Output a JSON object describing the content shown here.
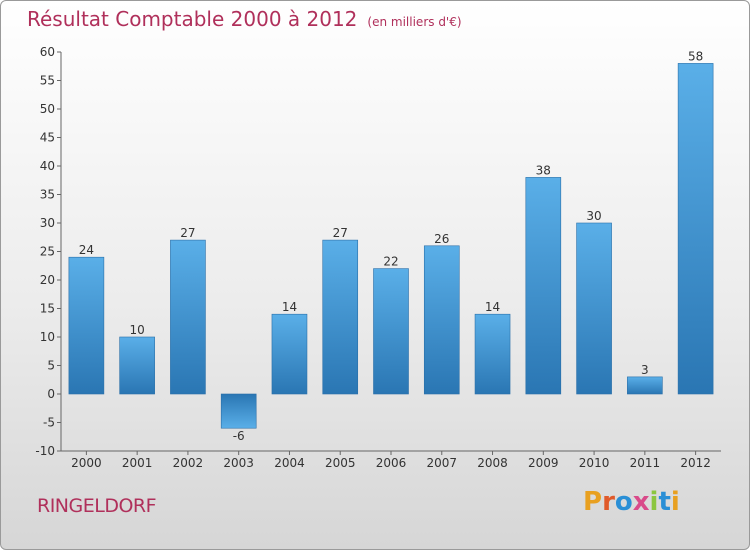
{
  "header": {
    "title": "Résultat Comptable 2000 à 2012",
    "subtitle": "(en milliers d'€)"
  },
  "footer": {
    "place": "RINGELDORF",
    "logo_letters": [
      "P",
      "r",
      "o",
      "x",
      "i",
      "t",
      "i"
    ]
  },
  "colors": {
    "title": "#b0305b",
    "bar_top": "#5aafe8",
    "bar_bottom": "#2a76b3",
    "logo": [
      "#e8a020",
      "#e05a2a",
      "#2a8fd6",
      "#d94a8a",
      "#8cc63f",
      "#2a8fd6",
      "#e8a020"
    ]
  },
  "chart_data": {
    "type": "bar",
    "title": "Résultat Comptable 2000 à 2012",
    "xlabel": "",
    "ylabel": "",
    "categories": [
      "2000",
      "2001",
      "2002",
      "2003",
      "2004",
      "2005",
      "2006",
      "2007",
      "2008",
      "2009",
      "2010",
      "2011",
      "2012"
    ],
    "values": [
      24,
      10,
      27,
      -6,
      14,
      27,
      22,
      26,
      14,
      38,
      30,
      3,
      58
    ],
    "ylim": [
      -10,
      60
    ],
    "yticks": [
      -10,
      -5,
      0,
      5,
      10,
      15,
      20,
      25,
      30,
      35,
      40,
      45,
      50,
      55,
      60
    ],
    "grid": false
  }
}
